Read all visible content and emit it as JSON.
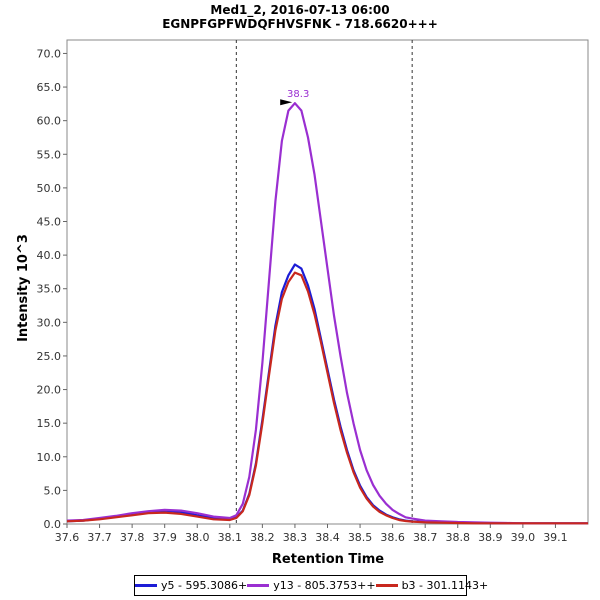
{
  "chart_data": {
    "type": "line",
    "title": "Med1_2, 2016-07-13 06:00",
    "subtitle": "EGNPFGPFWDQFHVSFNK - 718.6620+++",
    "xlabel": "Retention Time",
    "ylabel": "Intensity 10^3",
    "xlim": [
      37.6,
      39.2
    ],
    "ylim": [
      0,
      72
    ],
    "x_ticks": [
      "37.6",
      "37.7",
      "37.8",
      "37.9",
      "38.0",
      "38.1",
      "38.2",
      "38.3",
      "38.4",
      "38.5",
      "38.6",
      "38.7",
      "38.8",
      "38.9",
      "39.0",
      "39.1"
    ],
    "y_ticks": [
      "0.0",
      "5.0",
      "10.0",
      "15.0",
      "20.0",
      "25.0",
      "30.0",
      "35.0",
      "40.0",
      "45.0",
      "50.0",
      "55.0",
      "60.0",
      "65.0",
      "70.0"
    ],
    "grid": false,
    "legend_position": "bottom",
    "boundary_lines": [
      38.12,
      38.66
    ],
    "peak_annotation": {
      "x": 38.31,
      "y": 62.6,
      "label": "38.3",
      "color": "#9a2fd1"
    },
    "x": [
      37.6,
      37.65,
      37.7,
      37.75,
      37.8,
      37.85,
      37.9,
      37.95,
      38.0,
      38.05,
      38.1,
      38.12,
      38.14,
      38.16,
      38.18,
      38.2,
      38.22,
      38.24,
      38.26,
      38.28,
      38.3,
      38.32,
      38.34,
      38.36,
      38.38,
      38.4,
      38.42,
      38.44,
      38.46,
      38.48,
      38.5,
      38.52,
      38.54,
      38.56,
      38.58,
      38.6,
      38.62,
      38.64,
      38.66,
      38.7,
      38.75,
      38.8,
      38.85,
      38.9,
      38.95,
      39.0,
      39.05,
      39.1,
      39.15,
      39.2
    ],
    "series": [
      {
        "name": "y5 - 595.3086+",
        "color": "#1c1cd6",
        "values": [
          0.4,
          0.5,
          0.8,
          1.1,
          1.5,
          1.8,
          2.0,
          1.8,
          1.3,
          0.9,
          0.8,
          1.0,
          2.0,
          4.5,
          9.0,
          15.5,
          22.5,
          29.5,
          34.5,
          37.0,
          38.6,
          38.0,
          35.5,
          32.0,
          27.5,
          23.0,
          18.5,
          14.5,
          11.0,
          8.0,
          5.7,
          4.0,
          2.8,
          2.0,
          1.4,
          1.0,
          0.7,
          0.5,
          0.4,
          0.3,
          0.25,
          0.2,
          0.15,
          0.1,
          0.1,
          0.1,
          0.1,
          0.1,
          0.1,
          0.1
        ]
      },
      {
        "name": "y13 - 805.3753++",
        "color": "#9a2fd1",
        "values": [
          0.5,
          0.6,
          0.9,
          1.2,
          1.6,
          1.9,
          2.1,
          2.0,
          1.6,
          1.1,
          0.9,
          1.3,
          3.0,
          7.0,
          14.0,
          24.0,
          36.0,
          48.0,
          57.0,
          61.5,
          62.6,
          61.5,
          57.5,
          52.0,
          45.0,
          38.0,
          31.0,
          25.0,
          19.5,
          15.0,
          11.0,
          8.0,
          5.8,
          4.2,
          3.0,
          2.1,
          1.5,
          1.0,
          0.8,
          0.5,
          0.4,
          0.3,
          0.25,
          0.2,
          0.15,
          0.1,
          0.1,
          0.1,
          0.1,
          0.1
        ]
      },
      {
        "name": "b3 - 301.1143+",
        "color": "#c8281e",
        "values": [
          0.4,
          0.5,
          0.7,
          1.0,
          1.3,
          1.6,
          1.7,
          1.5,
          1.1,
          0.7,
          0.6,
          0.9,
          1.9,
          4.3,
          8.7,
          15.0,
          22.0,
          28.8,
          33.5,
          36.0,
          37.4,
          37.0,
          34.6,
          31.2,
          27.0,
          22.5,
          18.0,
          14.0,
          10.6,
          7.7,
          5.4,
          3.8,
          2.6,
          1.8,
          1.3,
          0.9,
          0.6,
          0.45,
          0.35,
          0.25,
          0.2,
          0.15,
          0.1,
          0.1,
          0.1,
          0.1,
          0.1,
          0.1,
          0.1,
          0.1
        ]
      }
    ]
  }
}
